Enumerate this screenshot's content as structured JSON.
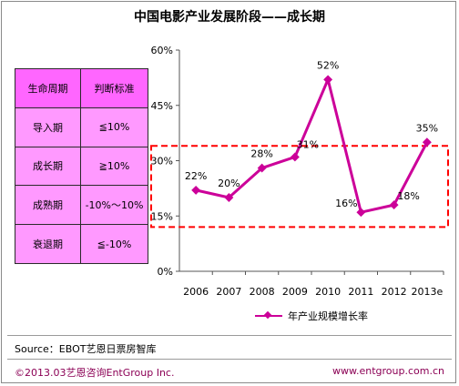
{
  "chart_data": {
    "type": "line",
    "title": "中国电影产业发展阶段——成长期",
    "categories": [
      "2006",
      "2007",
      "2008",
      "2009",
      "2010",
      "2011",
      "2012",
      "2013e"
    ],
    "series": [
      {
        "name": "年产业规模增长率",
        "values": [
          22,
          20,
          28,
          31,
          52,
          16,
          18,
          35
        ],
        "color": "#cc0099"
      }
    ],
    "data_labels": [
      "22%",
      "20%",
      "28%",
      "31%",
      "52%",
      "16%",
      "18%",
      "35%"
    ],
    "y_ticks": [
      "0%",
      "15%",
      "30%",
      "45%",
      "60%"
    ],
    "ylim": [
      0,
      60
    ],
    "grid": false,
    "legend_position": "bottom",
    "highlight_range": [
      12,
      34
    ],
    "highlight_color": "#ff0000"
  },
  "table": {
    "headers": [
      "生命周期",
      "判断标准"
    ],
    "rows": [
      [
        "导入期",
        "≦10%"
      ],
      [
        "成长期",
        "≧10%"
      ],
      [
        "成熟期",
        "-10%～10%"
      ],
      [
        "衰退期",
        "≦-10%"
      ]
    ]
  },
  "source": "Source：EBOT艺恩日票房智库",
  "footer": {
    "copyright": "©2013.03艺恩咨询EntGroup Inc.",
    "website": "www.entgroup.com.cn"
  }
}
